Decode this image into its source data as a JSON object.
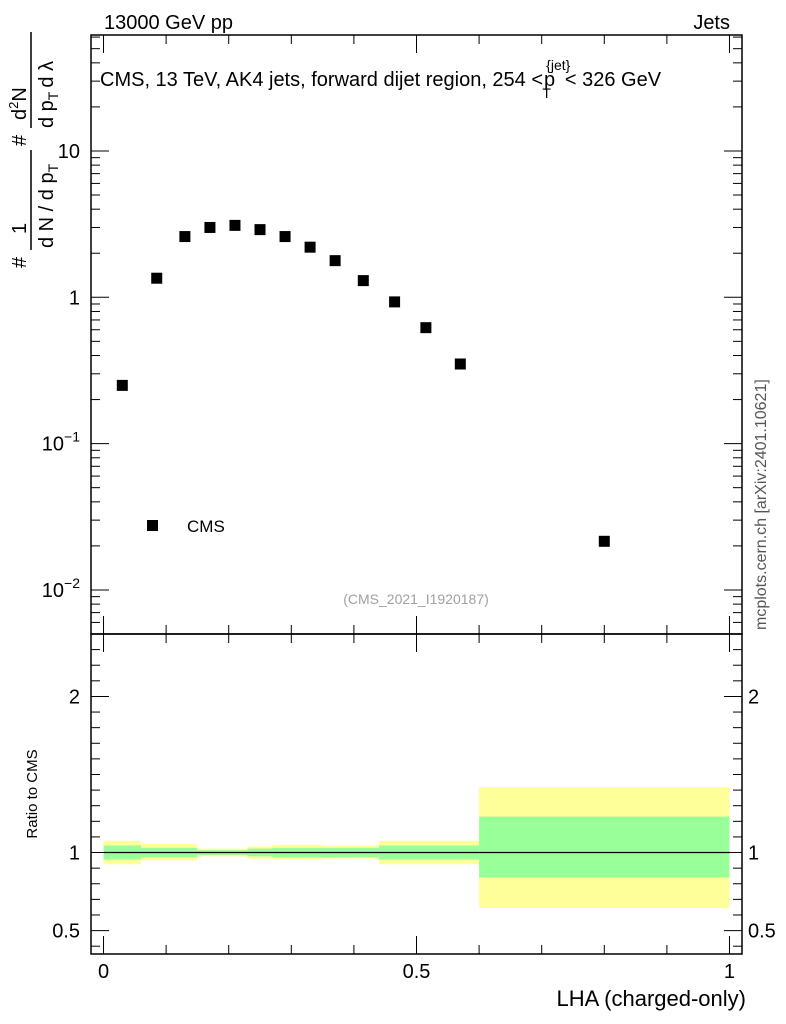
{
  "header": {
    "energy_label": "13000 GeV pp",
    "category_label": "Jets"
  },
  "plot_title": {
    "main": "CMS, 13 TeV, AK4 jets, forward dijet region, 254 <",
    "p": "p",
    "sub": "T",
    "sup": "{jet}",
    "tail": "< 326 GeV"
  },
  "y_axis_label": {
    "hash1": "#",
    "one": "1",
    "denom": "d N / d p",
    "denom_sub": "T",
    "hash2": "#",
    "num2": "d",
    "num2_sup": "2",
    "num2_tail": "N",
    "den2": "d p",
    "den2_sub": "T",
    "den2_tail": "d λ"
  },
  "side_label": "mcplots.cern.ch [arXiv:2401.10621]",
  "analysis_tag": "(CMS_2021_I1920187)",
  "legend": {
    "entry": "CMS"
  },
  "ratio_label": "Ratio to CMS",
  "x_axis_label": "LHA (charged-only)",
  "colors": {
    "band_inner": "#99ff99",
    "band_outer": "#ffff99",
    "marker": "#000000"
  },
  "chart_data": {
    "type": "scatter",
    "main_panel": {
      "yscale": "log",
      "xlim": [
        -0.02,
        1.02
      ],
      "ylim": [
        0.005,
        62
      ],
      "major_ticks": [
        {
          "value": 0.01,
          "base": "10",
          "exp": "−2"
        },
        {
          "value": 0.1,
          "base": "10",
          "exp": "−1"
        },
        {
          "value": 1,
          "base": "1",
          "exp": ""
        },
        {
          "value": 10,
          "base": "10",
          "exp": ""
        }
      ],
      "series": [
        {
          "name": "CMS",
          "x": [
            0.03,
            0.085,
            0.13,
            0.17,
            0.21,
            0.25,
            0.29,
            0.33,
            0.37,
            0.415,
            0.465,
            0.515,
            0.57,
            0.8
          ],
          "y": [
            0.25,
            1.35,
            2.6,
            3.0,
            3.1,
            2.9,
            2.6,
            2.2,
            1.78,
            1.3,
            0.93,
            0.62,
            0.35,
            0.0215
          ]
        }
      ]
    },
    "ratio_panel": {
      "ylim": [
        0.35,
        2.4
      ],
      "ticks": [
        {
          "value": 0.5,
          "label": "0.5"
        },
        {
          "value": 1,
          "label": "1"
        },
        {
          "value": 2,
          "label": "2"
        }
      ],
      "reference": 1,
      "bands": [
        {
          "x0": 0.0,
          "x1": 0.06,
          "inner": [
            0.955,
            1.045
          ],
          "outer": [
            0.925,
            1.075
          ]
        },
        {
          "x0": 0.06,
          "x1": 0.15,
          "inner": [
            0.97,
            1.03
          ],
          "outer": [
            0.95,
            1.055
          ]
        },
        {
          "x0": 0.15,
          "x1": 0.23,
          "inner": [
            0.985,
            1.015
          ],
          "outer": [
            0.975,
            1.025
          ]
        },
        {
          "x0": 0.23,
          "x1": 0.27,
          "inner": [
            0.975,
            1.025
          ],
          "outer": [
            0.96,
            1.04
          ]
        },
        {
          "x0": 0.27,
          "x1": 0.35,
          "inner": [
            0.97,
            1.03
          ],
          "outer": [
            0.955,
            1.05
          ]
        },
        {
          "x0": 0.35,
          "x1": 0.44,
          "inner": [
            0.97,
            1.03
          ],
          "outer": [
            0.96,
            1.045
          ]
        },
        {
          "x0": 0.44,
          "x1": 0.6,
          "inner": [
            0.955,
            1.045
          ],
          "outer": [
            0.925,
            1.075
          ]
        },
        {
          "x0": 0.6,
          "x1": 1.0,
          "inner": [
            0.84,
            1.23
          ],
          "outer": [
            0.645,
            1.42
          ]
        }
      ]
    },
    "x_ticks": [
      {
        "value": 0,
        "label": "0"
      },
      {
        "value": 0.5,
        "label": "0.5"
      },
      {
        "value": 1,
        "label": "1"
      }
    ],
    "x_minor_step": 0.1
  }
}
